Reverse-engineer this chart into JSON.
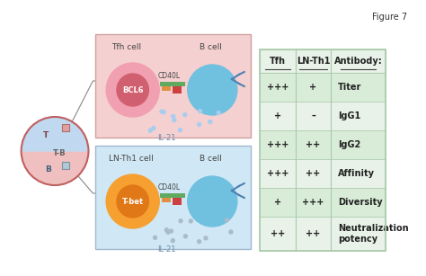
{
  "figure_label": "Figure 7",
  "table": {
    "headers": [
      "Tfh",
      "LN-Th1",
      "Antibody:"
    ],
    "rows": [
      [
        "+++",
        "+",
        "Titer"
      ],
      [
        "+",
        "–",
        "IgG1"
      ],
      [
        "+++",
        "++",
        "IgG2"
      ],
      [
        "+++",
        "++",
        "Affinity"
      ],
      [
        "+",
        "+++",
        "Diversity"
      ],
      [
        "++",
        "++",
        "Neutralization\npotency"
      ]
    ]
  },
  "colors": {
    "tfh_cell_outer": "#f0a0b0",
    "tfh_cell_inner": "#d06070",
    "bcell_color": "#70c0e0",
    "lnth1_outer": "#f5a030",
    "lnth1_inner": "#e07818",
    "top_box_bg": "#f5d0d0",
    "bot_box_bg": "#d0e8f5",
    "table_bg": "#e8f2e8",
    "table_alt": "#d8ecd8",
    "table_border": "#aacaaa",
    "lymph_outline": "#c06060",
    "lymph_fill_top": "#f0c0c0",
    "lymph_fill_bot": "#c0d8f0",
    "cd40l_green": "#60aa60",
    "cd40l_red": "#cc4040",
    "cd40l_orange": "#e09040",
    "connector": "#888888",
    "antibody": "#5080b0",
    "dot_color_top": "#aaccee",
    "dot_color_bot": "#aabbcc"
  },
  "top_panel": {
    "tcell_label": "Tfh cell",
    "bcell_label": "B cell",
    "inner_label": "BCL6",
    "cd40l_label": "CD40L",
    "il21_label": "IL-21"
  },
  "bot_panel": {
    "tcell_label": "LN-Th1 cell",
    "bcell_label": "B cell",
    "inner_label": "T-bet",
    "cd40l_label": "CD40L",
    "il21_label": "IL-21"
  },
  "lymph_labels": [
    "T",
    "T-B",
    "B"
  ]
}
